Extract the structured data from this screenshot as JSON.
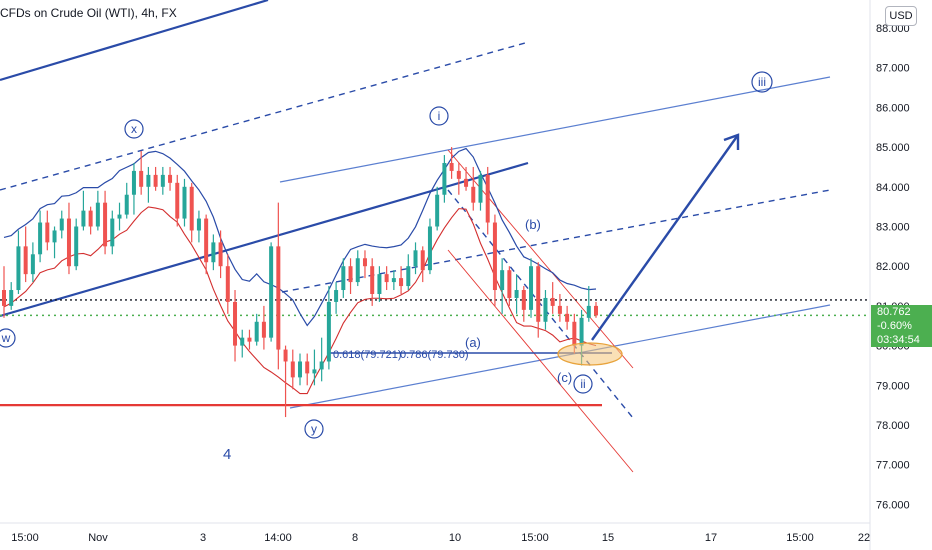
{
  "header": {
    "title": "CFDs on Crude Oil (WTI), 4h, FX",
    "currency_button": "USD"
  },
  "price_tag": {
    "price": "80.762",
    "change": "-0.60%",
    "countdown": "03:34:54",
    "color": "#4caf50"
  },
  "chart_data": {
    "type": "candlestick",
    "y_axis": {
      "range": [
        75.5,
        88.3
      ],
      "ticks": [
        "88.000",
        "87.000",
        "86.000",
        "85.000",
        "84.000",
        "83.000",
        "82.000",
        "81.000",
        "80.000",
        "79.000",
        "78.000",
        "77.000",
        "76.000"
      ]
    },
    "x_axis": {
      "ticks": [
        "15:00",
        "Nov",
        "3",
        "14:00",
        "8",
        "10",
        "15:00",
        "15",
        "17",
        "15:00",
        "22"
      ]
    },
    "colors": {
      "up": "#26a69a",
      "down": "#ef5350",
      "trend": "#2a4ba8",
      "channel": "#5b7fd0",
      "band_upper": "#2a4ba8",
      "band_lower": "#d32f2f",
      "support": "#e53935",
      "highlight": "#f5c77a"
    },
    "labels": {
      "wave_x": "x",
      "wave_w": "w",
      "wave_y": "y",
      "wave_i": "i",
      "wave_ii": "ii",
      "wave_iii": "iii",
      "wave_a": "(a)",
      "wave_b": "(b)",
      "wave_c": "(c)",
      "wave_4": "4",
      "fib_618": "0.618(79.721)",
      "fib_786": "0.786(79.730)"
    },
    "reference_levels": {
      "dotted_black": 81.15,
      "dotted_green": 80.76,
      "support_red": 78.5,
      "fib_line": 79.73
    },
    "candles": [
      [
        81.4,
        82.0,
        80.7,
        81.0
      ],
      [
        81.0,
        81.6,
        80.9,
        81.4
      ],
      [
        81.4,
        82.9,
        81.3,
        82.5
      ],
      [
        82.5,
        83.0,
        81.6,
        81.8
      ],
      [
        81.8,
        82.6,
        81.6,
        82.3
      ],
      [
        82.3,
        83.4,
        82.1,
        83.1
      ],
      [
        83.1,
        83.4,
        82.4,
        82.6
      ],
      [
        82.6,
        83.0,
        82.2,
        82.9
      ],
      [
        82.9,
        83.4,
        82.7,
        83.2
      ],
      [
        83.2,
        83.6,
        81.8,
        82.0
      ],
      [
        82.0,
        83.2,
        81.9,
        83.0
      ],
      [
        83.0,
        83.9,
        82.9,
        83.4
      ],
      [
        83.4,
        83.5,
        82.8,
        83.0
      ],
      [
        83.0,
        83.9,
        82.9,
        83.6
      ],
      [
        83.6,
        83.9,
        82.3,
        82.5
      ],
      [
        82.5,
        83.4,
        82.3,
        83.2
      ],
      [
        83.2,
        83.6,
        82.9,
        83.3
      ],
      [
        83.3,
        84.1,
        83.2,
        83.8
      ],
      [
        83.8,
        84.6,
        83.3,
        84.4
      ],
      [
        84.4,
        84.9,
        83.8,
        84.0
      ],
      [
        84.0,
        84.5,
        83.6,
        84.3
      ],
      [
        84.3,
        84.5,
        83.9,
        84.0
      ],
      [
        84.0,
        84.5,
        83.8,
        84.3
      ],
      [
        84.3,
        84.5,
        83.9,
        84.1
      ],
      [
        84.1,
        84.3,
        83.0,
        83.2
      ],
      [
        83.2,
        84.2,
        83.0,
        84.0
      ],
      [
        84.0,
        84.1,
        82.6,
        82.9
      ],
      [
        82.9,
        83.4,
        82.6,
        83.2
      ],
      [
        83.2,
        83.3,
        81.8,
        82.1
      ],
      [
        82.1,
        82.8,
        81.9,
        82.6
      ],
      [
        82.6,
        82.9,
        81.7,
        82.0
      ],
      [
        82.0,
        82.3,
        80.8,
        81.1
      ],
      [
        81.1,
        81.4,
        79.6,
        80.0
      ],
      [
        80.0,
        80.4,
        79.7,
        80.2
      ],
      [
        80.2,
        80.4,
        79.9,
        80.1
      ],
      [
        80.1,
        80.8,
        80.0,
        80.6
      ],
      [
        80.6,
        81.0,
        79.9,
        80.2
      ],
      [
        80.2,
        82.6,
        80.1,
        82.5
      ],
      [
        82.5,
        83.6,
        79.4,
        79.9
      ],
      [
        79.9,
        80.0,
        78.2,
        79.6
      ],
      [
        79.6,
        79.9,
        78.9,
        79.2
      ],
      [
        79.2,
        79.8,
        79.0,
        79.6
      ],
      [
        79.6,
        79.8,
        79.0,
        79.3
      ],
      [
        79.3,
        79.9,
        79.0,
        79.4
      ],
      [
        79.4,
        80.2,
        79.1,
        79.6
      ],
      [
        79.6,
        81.5,
        79.4,
        81.1
      ],
      [
        81.1,
        81.6,
        80.8,
        81.4
      ],
      [
        81.4,
        82.2,
        81.2,
        82.0
      ],
      [
        82.0,
        82.2,
        81.3,
        81.6
      ],
      [
        81.6,
        82.4,
        81.5,
        82.2
      ],
      [
        82.2,
        82.4,
        81.7,
        82.0
      ],
      [
        82.0,
        82.2,
        81.0,
        81.3
      ],
      [
        81.3,
        82.0,
        81.1,
        81.8
      ],
      [
        81.8,
        82.0,
        81.4,
        81.6
      ],
      [
        81.6,
        81.9,
        81.4,
        81.7
      ],
      [
        81.7,
        82.0,
        81.3,
        81.5
      ],
      [
        81.5,
        82.3,
        81.4,
        82.0
      ],
      [
        82.0,
        82.6,
        81.8,
        82.4
      ],
      [
        82.4,
        82.5,
        81.6,
        81.9
      ],
      [
        81.9,
        83.2,
        81.8,
        83.0
      ],
      [
        83.0,
        84.0,
        82.9,
        83.8
      ],
      [
        83.8,
        84.8,
        83.6,
        84.6
      ],
      [
        84.6,
        85.0,
        84.2,
        84.4
      ],
      [
        84.4,
        84.6,
        83.8,
        84.2
      ],
      [
        84.2,
        84.5,
        83.9,
        84.0
      ],
      [
        84.0,
        84.5,
        83.4,
        83.6
      ],
      [
        83.6,
        84.4,
        83.4,
        84.3
      ],
      [
        84.3,
        84.5,
        82.8,
        83.1
      ],
      [
        83.1,
        83.3,
        81.0,
        81.4
      ],
      [
        81.4,
        82.2,
        80.8,
        81.9
      ],
      [
        81.9,
        82.0,
        81.0,
        81.2
      ],
      [
        81.2,
        81.8,
        80.8,
        81.4
      ],
      [
        81.4,
        81.5,
        80.6,
        80.9
      ],
      [
        80.9,
        82.2,
        80.7,
        82.0
      ],
      [
        82.0,
        82.1,
        80.2,
        80.6
      ],
      [
        80.6,
        81.4,
        80.4,
        81.2
      ],
      [
        81.2,
        81.6,
        80.8,
        81.0
      ],
      [
        81.0,
        81.3,
        80.6,
        80.8
      ],
      [
        80.8,
        81.0,
        80.4,
        80.6
      ],
      [
        80.6,
        80.8,
        79.8,
        80.0
      ],
      [
        80.0,
        80.9,
        79.5,
        80.7
      ],
      [
        80.7,
        81.5,
        80.6,
        81.0
      ],
      [
        81.0,
        81.1,
        80.7,
        80.76
      ]
    ]
  }
}
